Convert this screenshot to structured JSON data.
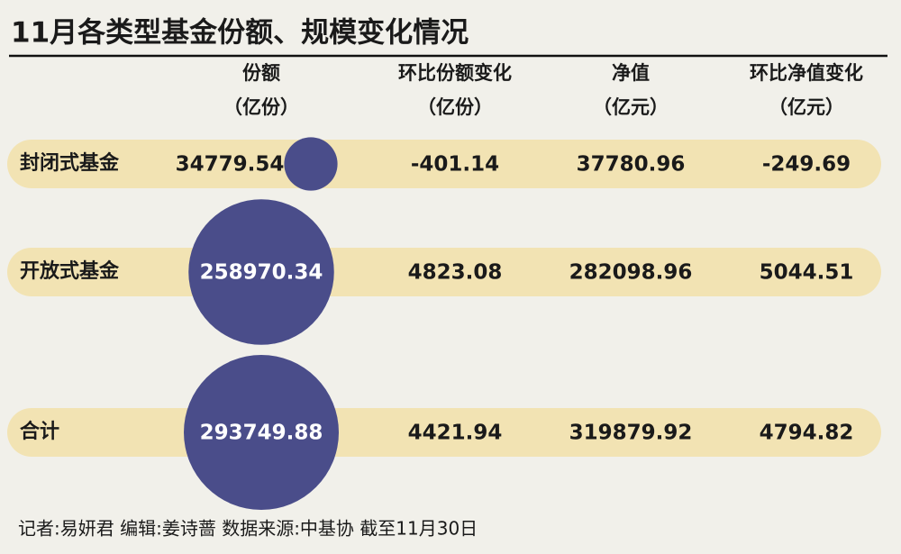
{
  "title": "11月各类型基金份额、规模变化情况",
  "columns": [
    {
      "name": "份额",
      "unit": "（亿份）"
    },
    {
      "name": "环比份额变化",
      "unit": "（亿份）"
    },
    {
      "name": "净值",
      "unit": "（亿元）"
    },
    {
      "name": "环比净值变化",
      "unit": "（亿元）"
    }
  ],
  "rows": [
    {
      "label": "封闭式基金",
      "values": [
        34779.54,
        -401.14,
        37780.96,
        -249.69
      ]
    },
    {
      "label": "开放式基金",
      "values": [
        258970.34,
        4823.08,
        282098.96,
        5044.51
      ]
    },
    {
      "label": "合计",
      "values": [
        293749.88,
        4421.94,
        319879.92,
        4794.82
      ]
    }
  ],
  "footer": "记者:易妍君  编辑:姜诗蔷  数据来源:中基协  截至11月30日"
}
